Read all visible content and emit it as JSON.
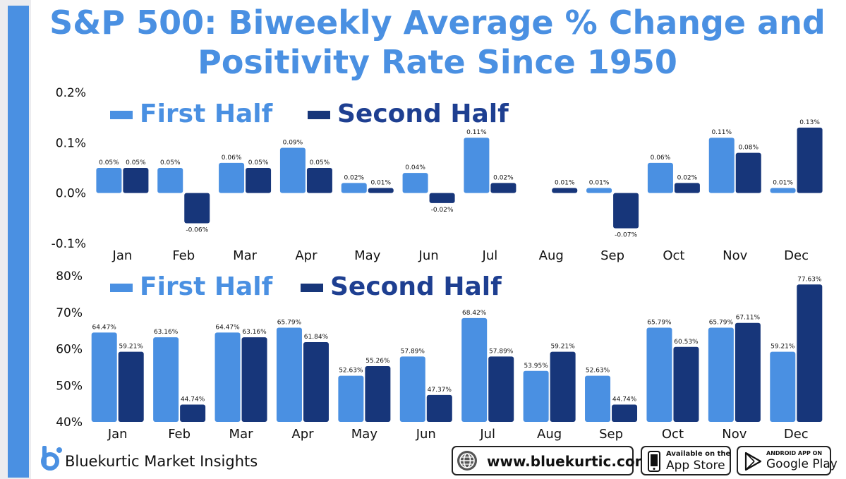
{
  "title_line1": "S&P 500: Biweekly Average % Change and",
  "title_line2": "Positivity Rate Since 1950",
  "colors": {
    "first_half": "#4a90e2",
    "second_half": "#17367a",
    "title": "#4a90e2"
  },
  "legend": {
    "first_half": "First Half",
    "second_half": "Second Half"
  },
  "chart_data": [
    {
      "type": "bar",
      "categories": [
        "Jan",
        "Feb",
        "Mar",
        "Apr",
        "May",
        "Jun",
        "Jul",
        "Aug",
        "Sep",
        "Oct",
        "Nov",
        "Dec"
      ],
      "series": [
        {
          "name": "First Half",
          "values": [
            0.05,
            0.05,
            0.06,
            0.09,
            0.02,
            0.04,
            0.11,
            null,
            0.01,
            0.06,
            0.11,
            0.01
          ],
          "labels": [
            "0.05%",
            "0.05%",
            "0.06%",
            "0.09%",
            "0.02%",
            "0.04%",
            "0.11%",
            "",
            "0.01%",
            "0.06%",
            "0.11%",
            "0.01%"
          ]
        },
        {
          "name": "Second Half",
          "values": [
            0.05,
            -0.06,
            0.05,
            0.05,
            0.01,
            -0.02,
            0.02,
            0.01,
            -0.07,
            0.02,
            0.08,
            0.13
          ],
          "labels": [
            "0.05%",
            "-0.06%",
            "0.05%",
            "0.05%",
            "0.01%",
            "-0.02%",
            "0.02%",
            "0.01%",
            "-0.07%",
            "0.02%",
            "0.08%",
            "0.13%"
          ]
        }
      ],
      "ylim": [
        -0.1,
        0.2
      ],
      "yticks": [
        0.2,
        0.1,
        0.0,
        -0.1
      ],
      "ytick_labels": [
        "0.2%",
        "0.1%",
        "0.0%",
        "-0.1%"
      ],
      "legend_position": "top-left",
      "grid": false
    },
    {
      "type": "bar",
      "categories": [
        "Jan",
        "Feb",
        "Mar",
        "Apr",
        "May",
        "Jun",
        "Jul",
        "Aug",
        "Sep",
        "Oct",
        "Nov",
        "Dec"
      ],
      "series": [
        {
          "name": "First Half",
          "values": [
            64.47,
            63.16,
            64.47,
            65.79,
            52.63,
            57.89,
            68.42,
            53.95,
            52.63,
            65.79,
            65.79,
            59.21
          ],
          "labels": [
            "64.47%",
            "63.16%",
            "64.47%",
            "65.79%",
            "52.63%",
            "57.89%",
            "68.42%",
            "53.95%",
            "52.63%",
            "65.79%",
            "65.79%",
            "59.21%"
          ]
        },
        {
          "name": "Second Half",
          "values": [
            59.21,
            44.74,
            63.16,
            61.84,
            55.26,
            47.37,
            57.89,
            59.21,
            44.74,
            60.53,
            67.11,
            77.63
          ],
          "labels": [
            "59.21%",
            "44.74%",
            "63.16%",
            "61.84%",
            "55.26%",
            "47.37%",
            "57.89%",
            "59.21%",
            "44.74%",
            "60.53%",
            "67.11%",
            "77.63%"
          ]
        }
      ],
      "ylim": [
        40,
        80
      ],
      "yticks": [
        80,
        70,
        60,
        50,
        40
      ],
      "ytick_labels": [
        "80%",
        "70%",
        "60%",
        "50%",
        "40%"
      ],
      "legend_position": "top-left",
      "grid": false
    }
  ],
  "footer": {
    "brand": "Bluekurtic Market Insights",
    "website": "www.bluekurtic.com",
    "app_store_small": "Available on the",
    "app_store_big": "App Store",
    "google_play_small": "ANDROID APP ON",
    "google_play_big": "Google Play"
  }
}
